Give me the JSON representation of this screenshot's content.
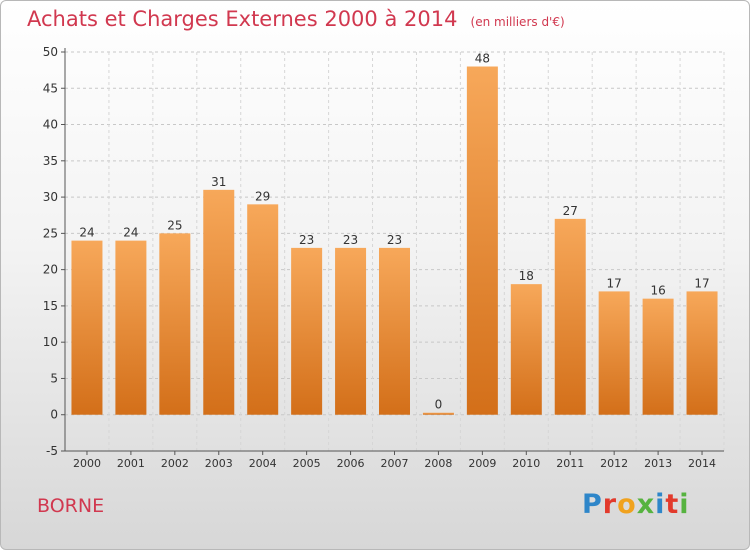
{
  "title": "Achats et Charges Externes 2000 à 2014",
  "unit": "(en milliers d'€)",
  "commune": "BORNE",
  "logo": "Proxiti",
  "colors": {
    "title": "#d1384f",
    "bar_top": "#f7a85a",
    "bar_bottom": "#d36f19",
    "logo": [
      "#2e86c9",
      "#e23a2c",
      "#f0a21e",
      "#56b33f",
      "#2e86c9",
      "#e23a2c",
      "#56b33f"
    ]
  },
  "chart_data": {
    "type": "bar",
    "categories": [
      "2000",
      "2001",
      "2002",
      "2003",
      "2004",
      "2005",
      "2006",
      "2007",
      "2008",
      "2009",
      "2010",
      "2011",
      "2012",
      "2013",
      "2014"
    ],
    "values": [
      24,
      24,
      25,
      31,
      29,
      23,
      23,
      23,
      0,
      48,
      18,
      27,
      17,
      16,
      17
    ],
    "ylim": [
      -5,
      50
    ],
    "yticks": [
      -5,
      0,
      5,
      10,
      15,
      20,
      25,
      30,
      35,
      40,
      45,
      50
    ],
    "grid": "horizontal dashed",
    "title": "Achats et Charges Externes 2000 à 2014",
    "xlabel": "",
    "ylabel": ""
  }
}
